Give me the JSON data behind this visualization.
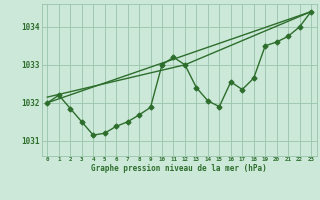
{
  "background_color": "#cce8d8",
  "grid_color": "#99c4aa",
  "line_color": "#2d6e2d",
  "title": "Graphe pression niveau de la mer (hPa)",
  "xlim": [
    -0.5,
    23.5
  ],
  "ylim": [
    1030.6,
    1034.6
  ],
  "yticks": [
    1031,
    1032,
    1033,
    1034
  ],
  "xticks": [
    0,
    1,
    2,
    3,
    4,
    5,
    6,
    7,
    8,
    9,
    10,
    11,
    12,
    13,
    14,
    15,
    16,
    17,
    18,
    19,
    20,
    21,
    22,
    23
  ],
  "line1_x": [
    0,
    1,
    2,
    3,
    4,
    5,
    6,
    7,
    8,
    9,
    10,
    11,
    12,
    13,
    14,
    15,
    16,
    17,
    18,
    19,
    20,
    21,
    22,
    23
  ],
  "line1_y": [
    1032.0,
    1032.2,
    1031.85,
    1031.5,
    1031.15,
    1031.2,
    1031.38,
    1031.5,
    1031.68,
    1031.88,
    1033.0,
    1033.2,
    1033.0,
    1032.4,
    1032.05,
    1031.9,
    1032.55,
    1032.35,
    1032.65,
    1033.5,
    1033.6,
    1033.75,
    1034.0,
    1034.4
  ],
  "line2_x": [
    0,
    23
  ],
  "line2_y": [
    1032.0,
    1034.4
  ],
  "line3_x": [
    0,
    12,
    23
  ],
  "line3_y": [
    1032.15,
    1033.0,
    1034.4
  ],
  "marker_size": 2.5,
  "line_width": 1.0,
  "figsize": [
    3.2,
    2.0
  ],
  "dpi": 100
}
